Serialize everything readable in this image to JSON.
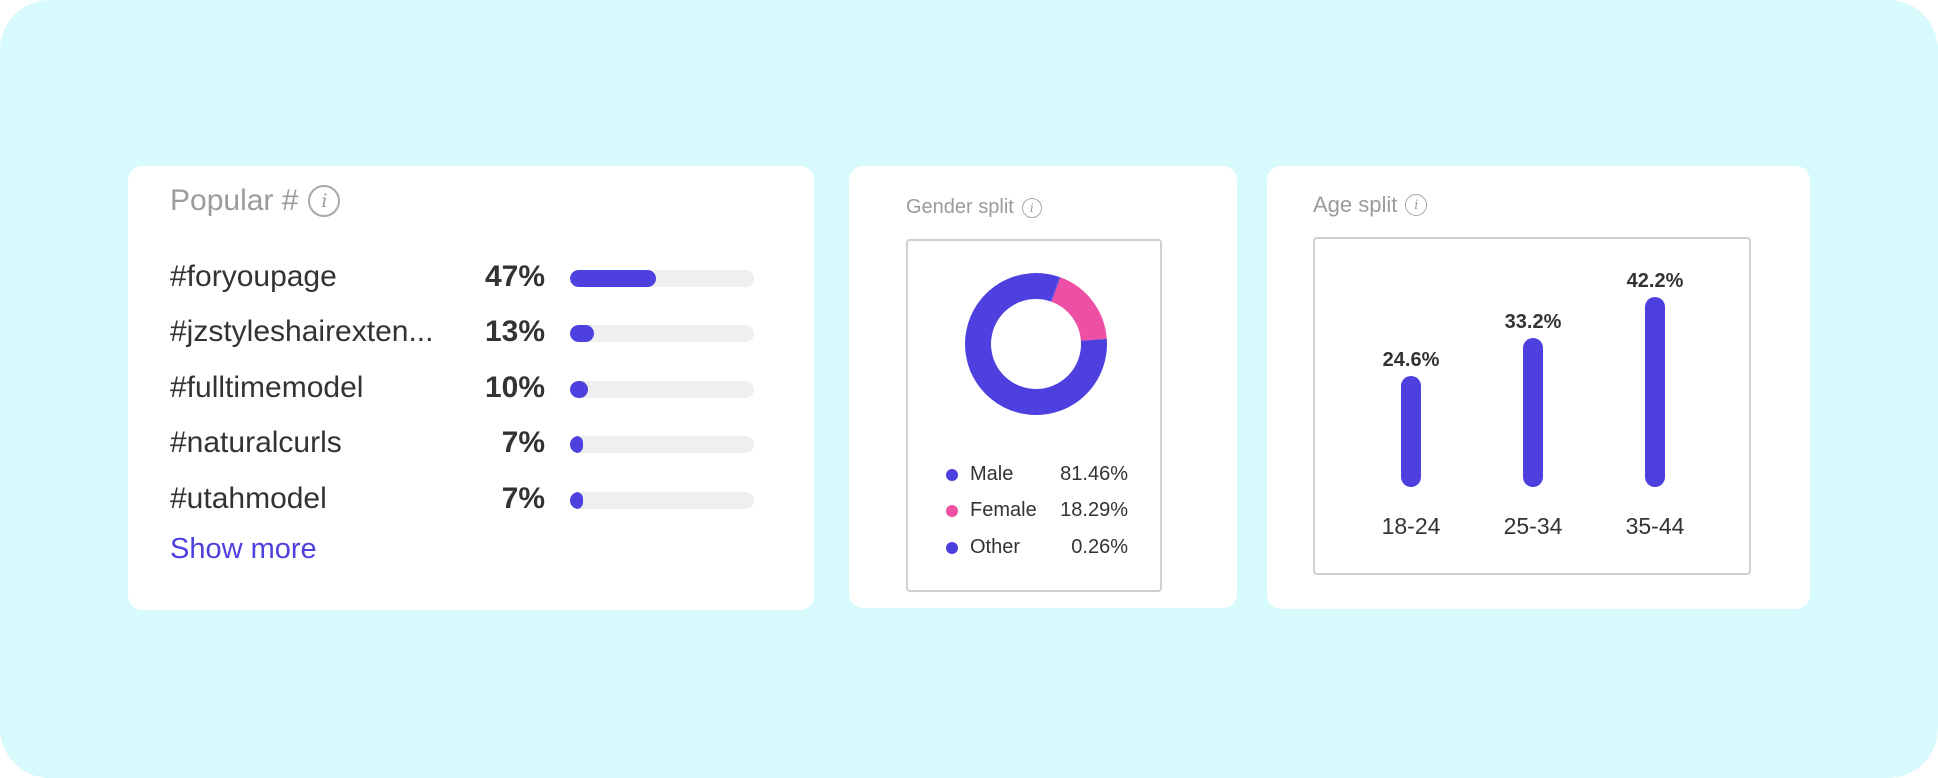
{
  "popular": {
    "title": "Popular #",
    "info_icon": "info-icon",
    "items": [
      {
        "tag": "#foryoupage",
        "percent": "47%",
        "value": 47
      },
      {
        "tag": "#jzstyleshairexten...",
        "percent": "13%",
        "value": 13
      },
      {
        "tag": "#fulltimemodel",
        "percent": "10%",
        "value": 10
      },
      {
        "tag": "#naturalcurls",
        "percent": "7%",
        "value": 7
      },
      {
        "tag": "#utahmodel",
        "percent": "7%",
        "value": 7
      }
    ],
    "show_more": "Show more"
  },
  "gender": {
    "title": "Gender split",
    "info_icon": "info-icon",
    "legend": [
      {
        "label": "Male",
        "value": "81.46%",
        "color": "#4d40df"
      },
      {
        "label": "Female",
        "value": "18.29%",
        "color": "#ec4fa3"
      },
      {
        "label": "Other",
        "value": "0.26%",
        "color": "#4d40df"
      }
    ]
  },
  "age": {
    "title": "Age split",
    "info_icon": "info-icon"
  },
  "colors": {
    "accent": "#4d40df",
    "female": "#ec4fa3",
    "background": "#d7fafc"
  },
  "chart_data": [
    {
      "type": "pie",
      "categories": [
        "Male",
        "Female",
        "Other"
      ],
      "values": [
        81.46,
        18.29,
        0.26
      ]
    },
    {
      "type": "bar",
      "categories": [
        "18-24",
        "25-34",
        "35-44"
      ],
      "values": [
        24.6,
        33.2,
        42.2
      ],
      "data_labels": [
        "24.6%",
        "33.2%",
        "42.2%"
      ]
    }
  ]
}
